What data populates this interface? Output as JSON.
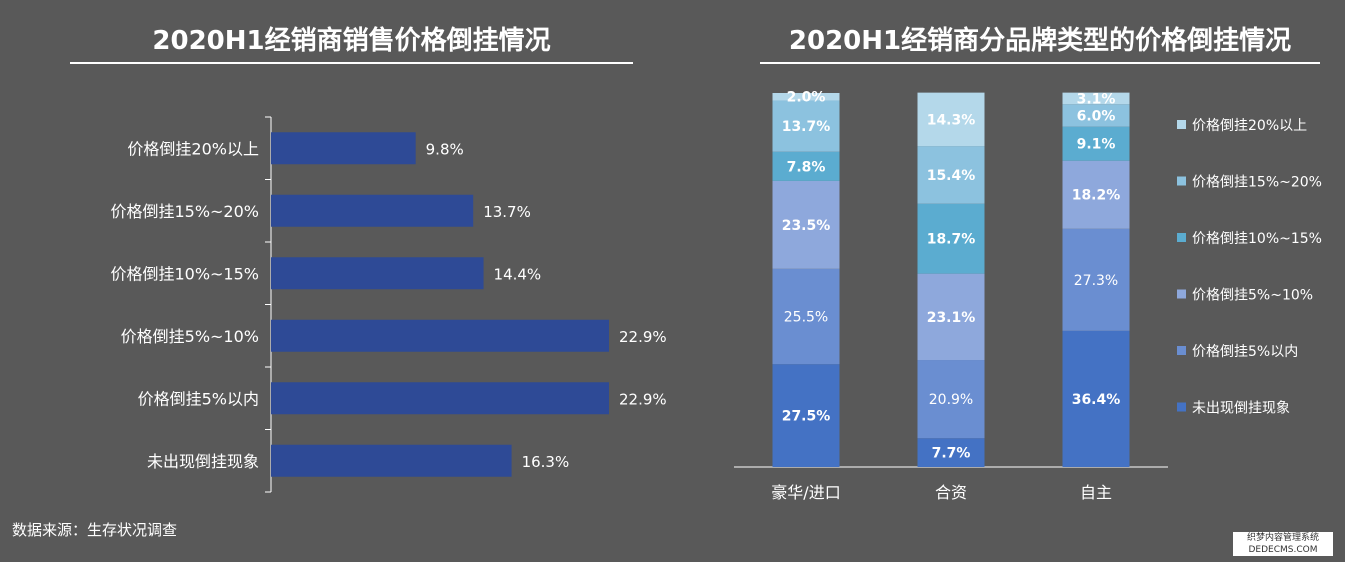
{
  "charts": {
    "left_title": "2020H1经销商销售价格倒挂情况",
    "right_title": "2020H1经销商分品牌类型的价格倒挂情况"
  },
  "source": "数据来源：生存状况调查",
  "stamp": "织梦内容管理系统 DEDECMS.COM",
  "colors": {
    "left_bar": "#2e4a96",
    "stack": [
      "#4472c4",
      "#6a8ed1",
      "#8ea8dc",
      "#5bacd0",
      "#8cc2df",
      "#b4d8ea"
    ]
  },
  "chart_data": [
    {
      "type": "bar",
      "orientation": "horizontal",
      "title": "2020H1经销商销售价格倒挂情况",
      "categories": [
        "价格倒挂20%以上",
        "价格倒挂15%~20%",
        "价格倒挂10%~15%",
        "价格倒挂5%~10%",
        "价格倒挂5%以内",
        "未出现倒挂现象"
      ],
      "values": [
        9.8,
        13.7,
        14.4,
        22.9,
        22.9,
        16.3
      ],
      "labels": [
        "9.8%",
        "13.7%",
        "14.4%",
        "22.9%",
        "22.9%",
        "16.3%"
      ],
      "xlim": [
        0,
        23.5
      ]
    },
    {
      "type": "bar",
      "stacked": true,
      "title": "2020H1经销商分品牌类型的价格倒挂情况",
      "categories": [
        "豪华/进口",
        "合资",
        "自主"
      ],
      "series": [
        {
          "name": "未出现倒挂现象",
          "values": [
            27.5,
            7.7,
            36.4
          ],
          "labels": [
            "27.5%",
            "7.7%",
            "36.4%"
          ]
        },
        {
          "name": "价格倒挂5%以内",
          "values": [
            25.5,
            20.9,
            27.3
          ],
          "labels": [
            "25.5%",
            "20.9%",
            "27.3%"
          ]
        },
        {
          "name": "价格倒挂5%~10%",
          "values": [
            23.5,
            23.1,
            18.2
          ],
          "labels": [
            "23.5%",
            "23.1%",
            "18.2%"
          ]
        },
        {
          "name": "价格倒挂10%~15%",
          "values": [
            7.8,
            18.7,
            9.1
          ],
          "labels": [
            "7.8%",
            "18.7%",
            "9.1%"
          ]
        },
        {
          "name": "价格倒挂15%~20%",
          "values": [
            13.7,
            15.4,
            6.0
          ],
          "labels": [
            "13.7%",
            "15.4%",
            "6.0%"
          ]
        },
        {
          "name": "价格倒挂20%以上",
          "values": [
            2.0,
            14.3,
            3.1
          ],
          "labels": [
            "2.0%",
            "14.3%",
            "3.1%"
          ]
        }
      ],
      "bold_labels": [
        [
          true,
          true,
          true
        ],
        [
          false,
          false,
          false
        ],
        [
          true,
          true,
          true
        ],
        [
          true,
          true,
          true
        ],
        [
          true,
          true,
          true
        ],
        [
          true,
          true,
          true
        ]
      ],
      "legend_order": [
        "价格倒挂20%以上",
        "价格倒挂15%~20%",
        "价格倒挂10%~15%",
        "价格倒挂5%~10%",
        "价格倒挂5%以内",
        "未出现倒挂现象"
      ],
      "legend_position": "right"
    }
  ]
}
